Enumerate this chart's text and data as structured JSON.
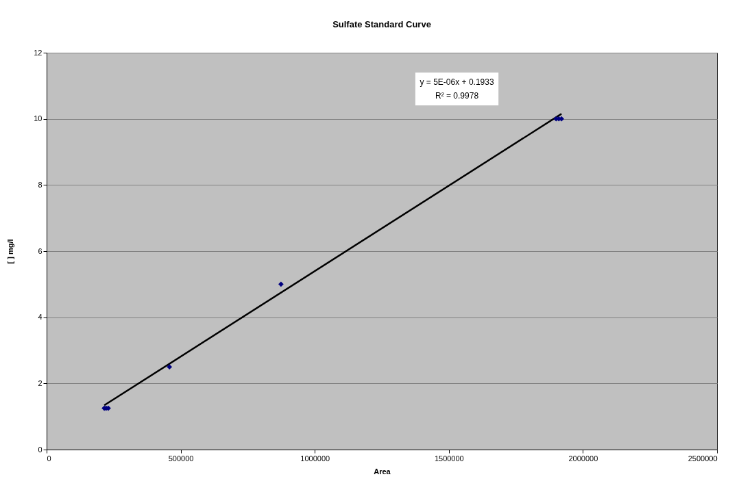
{
  "chart_data": {
    "type": "scatter",
    "title": "Sulfate Standard Curve",
    "xlabel": "Area",
    "ylabel": "[ ] mg/l",
    "xlim": [
      0,
      2500000
    ],
    "xticks": [
      0,
      500000,
      1000000,
      1500000,
      2000000,
      2500000
    ],
    "ylim": [
      0,
      12
    ],
    "yticks": [
      0,
      2,
      4,
      6,
      8,
      10,
      12
    ],
    "grid": "y",
    "annotations": [
      "y = 5E-06x + 0.1933",
      "R² = 0.9978"
    ],
    "series": [
      {
        "marker": "diamond",
        "color": "#000080",
        "x": [
          215000,
          222000,
          230000,
          458000,
          874000,
          1900000,
          1910000,
          1920000
        ],
        "values": [
          1.25,
          1.25,
          1.25,
          2.5,
          5,
          10,
          10,
          10
        ]
      },
      {
        "type": "line",
        "color": "#000000",
        "x": [
          215000,
          1920000
        ],
        "values": [
          1.34,
          10.15
        ]
      }
    ]
  }
}
